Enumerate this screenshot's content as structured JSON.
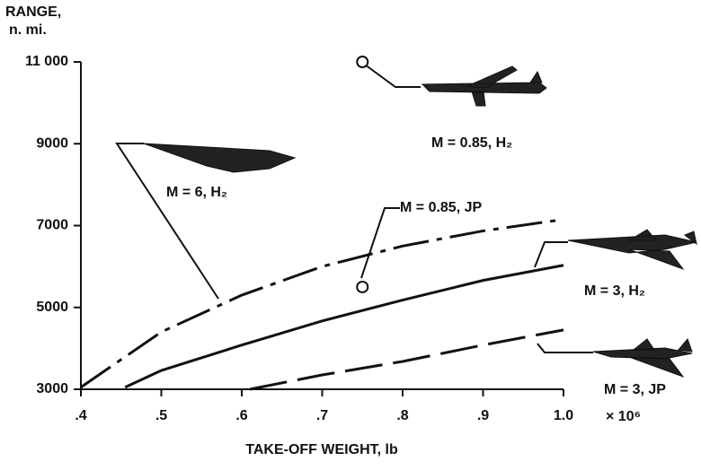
{
  "chart_data": {
    "type": "line",
    "y_label_lines": [
      "RANGE,",
      "n. mi."
    ],
    "x_label": "TAKE-OFF WEIGHT, lb",
    "x_multiplier": "× 10⁶",
    "xlim": [
      0.4,
      1.0
    ],
    "xticks": [
      {
        "value": 0.4,
        "label": ".4"
      },
      {
        "value": 0.5,
        "label": ".5"
      },
      {
        "value": 0.6,
        "label": ".6"
      },
      {
        "value": 0.7,
        "label": ".7"
      },
      {
        "value": 0.8,
        "label": ".8"
      },
      {
        "value": 0.9,
        "label": ".9"
      },
      {
        "value": 1.0,
        "label": "1.0"
      }
    ],
    "ylim": [
      3000,
      11000
    ],
    "yticks": [
      3000,
      5000,
      7000,
      9000,
      {
        "value": 11000,
        "label": "11 000"
      }
    ],
    "series": [
      {
        "name": "M = 6, H₂",
        "style": "dashdot",
        "color": "#111",
        "x": [
          0.4,
          0.5,
          0.6,
          0.7,
          0.8,
          0.9,
          1.0
        ],
        "values": [
          3050,
          4400,
          5300,
          6000,
          6500,
          6870,
          7150
        ]
      },
      {
        "name": "M = 3, H₂",
        "style": "solid",
        "color": "#111",
        "x": [
          0.455,
          0.5,
          0.6,
          0.7,
          0.8,
          0.9,
          1.0
        ],
        "values": [
          3050,
          3460,
          4080,
          4670,
          5180,
          5660,
          6030
        ]
      },
      {
        "name": "M = 3, JP",
        "style": "dash",
        "color": "#111",
        "x": [
          0.61,
          0.7,
          0.8,
          0.9,
          1.0
        ],
        "values": [
          3000,
          3350,
          3680,
          4080,
          4450
        ]
      },
      {
        "name": "M = 0.85, H₂",
        "style": "marker",
        "color": "#111",
        "x": [
          0.75
        ],
        "values": [
          11000
        ]
      },
      {
        "name": "M = 0.85, JP",
        "style": "marker",
        "color": "#111",
        "x": [
          0.75
        ],
        "values": [
          5500
        ]
      }
    ]
  }
}
